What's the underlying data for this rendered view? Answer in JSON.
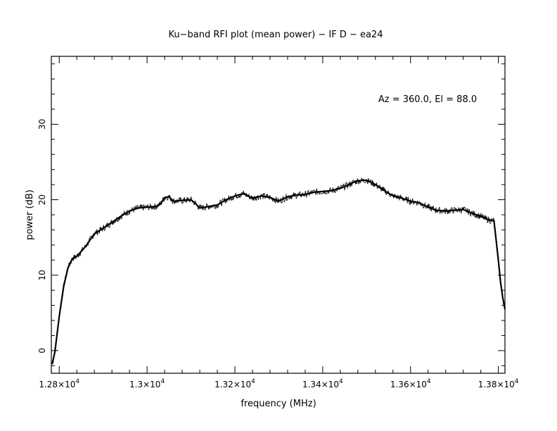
{
  "chart_data": {
    "type": "line",
    "title": "Ku−band RFI plot (mean power) − IF D − ea24",
    "xlabel": "frequency (MHz)",
    "ylabel": "power (dB)",
    "xlim": [
      12782,
      13815
    ],
    "ylim": [
      -3,
      39
    ],
    "annotation": "Az = 360.0, El = 88.0",
    "grid": false,
    "x_ticks": [
      {
        "value": 12800,
        "label": "1.28×10",
        "exp": "4"
      },
      {
        "value": 13000,
        "label": "1.3×10",
        "exp": "4"
      },
      {
        "value": 13200,
        "label": "1.32×10",
        "exp": "4"
      },
      {
        "value": 13400,
        "label": "1.34×10",
        "exp": "4"
      },
      {
        "value": 13600,
        "label": "1.36×10",
        "exp": "4"
      },
      {
        "value": 13800,
        "label": "1.38×10",
        "exp": "4"
      }
    ],
    "y_ticks": [
      {
        "value": 0,
        "label": "0"
      },
      {
        "value": 10,
        "label": "10"
      },
      {
        "value": 20,
        "label": "20"
      },
      {
        "value": 30,
        "label": "30"
      }
    ],
    "series": [
      {
        "color": "#000000",
        "x": [
          12784,
          12790,
          12800,
          12810,
          12820,
          12830,
          12840,
          12860,
          12880,
          12900,
          12920,
          12940,
          12960,
          12980,
          13000,
          13020,
          13030,
          13040,
          13050,
          13060,
          13080,
          13100,
          13110,
          13120,
          13140,
          13160,
          13180,
          13200,
          13220,
          13240,
          13260,
          13280,
          13300,
          13320,
          13340,
          13360,
          13380,
          13400,
          13420,
          13440,
          13460,
          13470,
          13480,
          13500,
          13520,
          13540,
          13560,
          13580,
          13600,
          13620,
          13640,
          13660,
          13680,
          13700,
          13720,
          13740,
          13760,
          13770,
          13780,
          13790,
          13800,
          13805,
          13810,
          13815
        ],
        "y": [
          -1.8,
          -0.2,
          4.5,
          8.5,
          11.0,
          12.2,
          12.5,
          13.8,
          15.5,
          16.2,
          17.0,
          17.8,
          18.5,
          18.9,
          19.0,
          19.1,
          19.4,
          20.3,
          20.4,
          19.8,
          19.9,
          20.0,
          19.5,
          18.9,
          19.1,
          19.3,
          20.0,
          20.5,
          20.8,
          20.2,
          20.5,
          20.3,
          19.8,
          20.4,
          20.6,
          20.7,
          21.0,
          21.1,
          21.2,
          21.5,
          22.0,
          22.3,
          22.5,
          22.6,
          22.0,
          21.2,
          20.5,
          20.2,
          19.8,
          19.6,
          19.0,
          18.6,
          18.5,
          18.6,
          18.7,
          18.2,
          17.8,
          17.5,
          17.3,
          17.2,
          12.0,
          9.0,
          7.0,
          5.5
        ]
      }
    ]
  }
}
